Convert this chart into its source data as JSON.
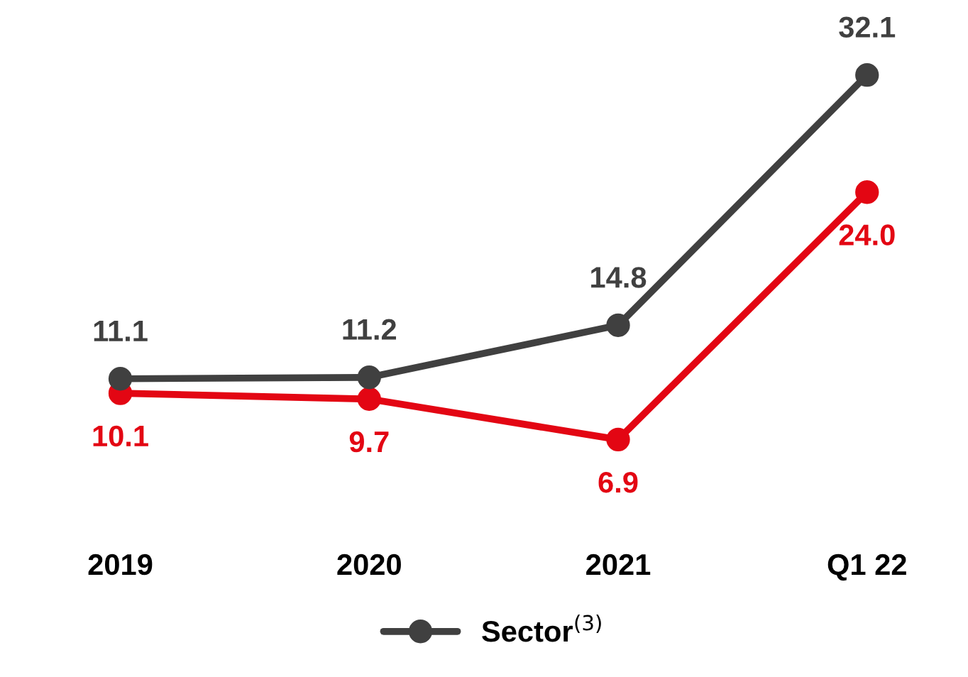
{
  "chart_data": {
    "type": "line",
    "categories": [
      "2019",
      "2020",
      "2021",
      "Q1 22"
    ],
    "series": [
      {
        "color": "#e30613",
        "values": [
          10.1,
          9.7,
          6.9,
          24.0
        ],
        "value_labels": [
          "10.1",
          "9.7",
          "6.9",
          "24.0"
        ]
      },
      {
        "name": "Sector$^{(3)}$",
        "color": "#404040",
        "values": [
          11.1,
          11.2,
          14.8,
          32.1
        ]
      }
    ],
    "data_labels": true,
    "marker": "circle",
    "line_style": "solid",
    "legend": "bottom",
    "tick_labels": "x",
    "grid": false
  }
}
